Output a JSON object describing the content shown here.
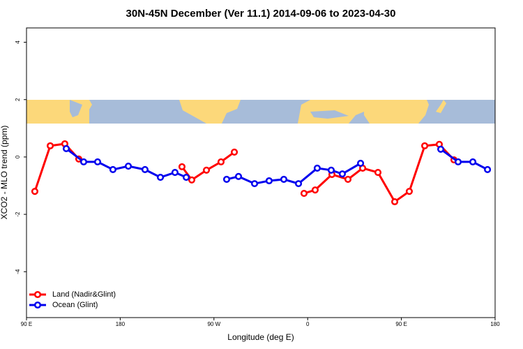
{
  "chart_data": {
    "type": "line",
    "title": "30N-45N December (Ver 11.1)   2014-09-06 to 2023-04-30",
    "xlabel": "Longitude (deg E)",
    "ylabel": "XCO2 - MLO trend (ppm)",
    "xlim": [
      90,
      540
    ],
    "ylim": [
      -5.6,
      4.5
    ],
    "xticks": [
      {
        "value": 90,
        "label": "90 E"
      },
      180,
      {
        "value": 270,
        "label": "90 W"
      },
      {
        "value": 360,
        "label": "0"
      },
      {
        "value": 450,
        "label": "90 E"
      },
      {
        "value": 540,
        "label": "180"
      }
    ],
    "yticks": [
      4,
      2,
      0,
      -2,
      -4
    ],
    "legend": "bottom-left",
    "series": [
      {
        "name": "Land (Nadir&Glint)",
        "color": "#ff0000",
        "x": [
          98,
          112.8,
          126.8,
          140.2,
          null,
          239.3,
          248.7,
          262.8,
          276.8,
          289.6,
          null,
          356.5,
          367.2,
          383.3,
          398.7,
          412.8,
          427.5,
          443.6,
          457.6,
          472.4,
          486.4,
          500.5
        ],
        "values": [
          -1.2,
          0.39,
          0.46,
          -0.07,
          null,
          -0.34,
          -0.8,
          -0.46,
          -0.17,
          0.17,
          null,
          -1.27,
          -1.15,
          -0.61,
          -0.78,
          -0.39,
          -0.54,
          -1.56,
          -1.2,
          0.39,
          0.44,
          -0.1
        ]
      },
      {
        "name": "Ocean (Glint)",
        "color": "#0000ee",
        "x": [
          128.2,
          144.9,
          158.3,
          173,
          187.8,
          203.8,
          218.6,
          232.6,
          243.4,
          null,
          282.2,
          293.6,
          309,
          323,
          337.1,
          351.2,
          369.2,
          382.6,
          393.3,
          410.8,
          null,
          487.8,
          504.5,
          518.6,
          532.7
        ],
        "values": [
          0.29,
          -0.17,
          -0.17,
          -0.44,
          -0.32,
          -0.44,
          -0.71,
          -0.54,
          -0.71,
          null,
          -0.78,
          -0.68,
          -0.93,
          -0.83,
          -0.78,
          -0.93,
          -0.39,
          -0.46,
          -0.59,
          -0.22,
          null,
          0.27,
          -0.17,
          -0.17,
          -0.44
        ]
      }
    ]
  }
}
